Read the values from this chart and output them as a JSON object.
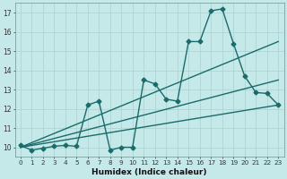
{
  "title": "",
  "xlabel": "Humidex (Indice chaleur)",
  "ylabel": "",
  "bg_color": "#c5e8e8",
  "grid_color": "#b0d4d4",
  "line_color": "#1a6b6b",
  "xlim": [
    -0.5,
    23.5
  ],
  "ylim": [
    9.5,
    17.5
  ],
  "xticks": [
    0,
    1,
    2,
    3,
    4,
    5,
    6,
    7,
    8,
    9,
    10,
    11,
    12,
    13,
    14,
    15,
    16,
    17,
    18,
    19,
    20,
    21,
    22,
    23
  ],
  "yticks": [
    10,
    11,
    12,
    13,
    14,
    15,
    16,
    17
  ],
  "series": [
    {
      "x": [
        0,
        1,
        2,
        3,
        4,
        5,
        6,
        7,
        8,
        9,
        10,
        11,
        12,
        13,
        14,
        15,
        16,
        17,
        18,
        19,
        20,
        21,
        22,
        23
      ],
      "y": [
        10.1,
        9.85,
        9.95,
        10.05,
        10.1,
        10.05,
        12.2,
        12.4,
        9.85,
        10.0,
        10.0,
        13.5,
        13.3,
        12.5,
        12.4,
        15.5,
        15.5,
        17.1,
        17.2,
        15.4,
        13.7,
        12.85,
        12.8,
        12.2
      ],
      "marker": "D",
      "markersize": 2.5,
      "linewidth": 1.0
    },
    {
      "x": [
        0,
        23
      ],
      "y": [
        10.0,
        15.5
      ],
      "marker": null,
      "linewidth": 1.0
    },
    {
      "x": [
        0,
        23
      ],
      "y": [
        10.0,
        13.5
      ],
      "marker": null,
      "linewidth": 1.0
    },
    {
      "x": [
        0,
        23
      ],
      "y": [
        10.0,
        12.2
      ],
      "marker": null,
      "linewidth": 1.0
    }
  ]
}
